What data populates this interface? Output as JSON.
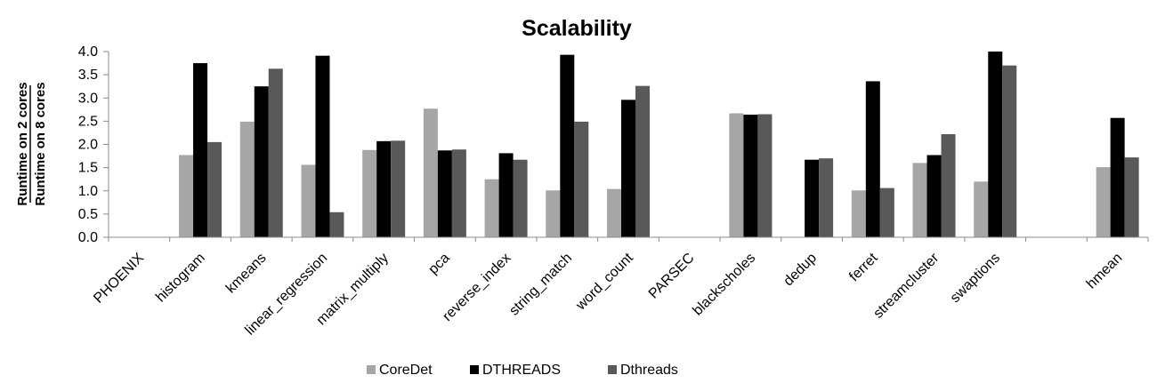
{
  "chart_data": {
    "type": "bar",
    "title": "Scalability",
    "ylabel_numerator": "Runtime on 2 cores",
    "ylabel_denominator": "Runtime on 8 cores",
    "xlabel": "",
    "ylim": [
      0,
      4.0
    ],
    "yticks": [
      "0.0",
      "0.5",
      "1.0",
      "1.5",
      "2.0",
      "2.5",
      "3.0",
      "3.5",
      "4.0"
    ],
    "grid": false,
    "legend_position": "bottom",
    "categories": [
      "PHOENIX",
      "histogram",
      "kmeans",
      "linear_regression",
      "matrix_multiply",
      "pca",
      "reverse_index",
      "string_match",
      "word_count",
      "PARSEC",
      "blackscholes",
      "dedup",
      "ferret",
      "streamcluster",
      "swaptions",
      "",
      "hmean"
    ],
    "series": [
      {
        "name": "CoreDet",
        "color": "#a6a6a6",
        "values": [
          null,
          1.77,
          2.49,
          1.56,
          1.88,
          2.77,
          1.25,
          1.01,
          1.04,
          null,
          2.67,
          null,
          1.01,
          1.6,
          1.2,
          null,
          1.51
        ]
      },
      {
        "name": "DTHREADS",
        "color": "#000000",
        "values": [
          null,
          3.75,
          3.25,
          3.91,
          2.07,
          1.87,
          1.81,
          3.93,
          2.96,
          null,
          2.64,
          1.67,
          3.36,
          1.77,
          4.0,
          null,
          2.57
        ]
      },
      {
        "name": "Dthreads",
        "color": "#595959",
        "values": [
          null,
          2.05,
          3.63,
          0.54,
          2.08,
          1.89,
          1.67,
          2.49,
          3.26,
          null,
          2.65,
          1.7,
          1.06,
          2.22,
          3.7,
          null,
          1.72
        ]
      }
    ]
  }
}
